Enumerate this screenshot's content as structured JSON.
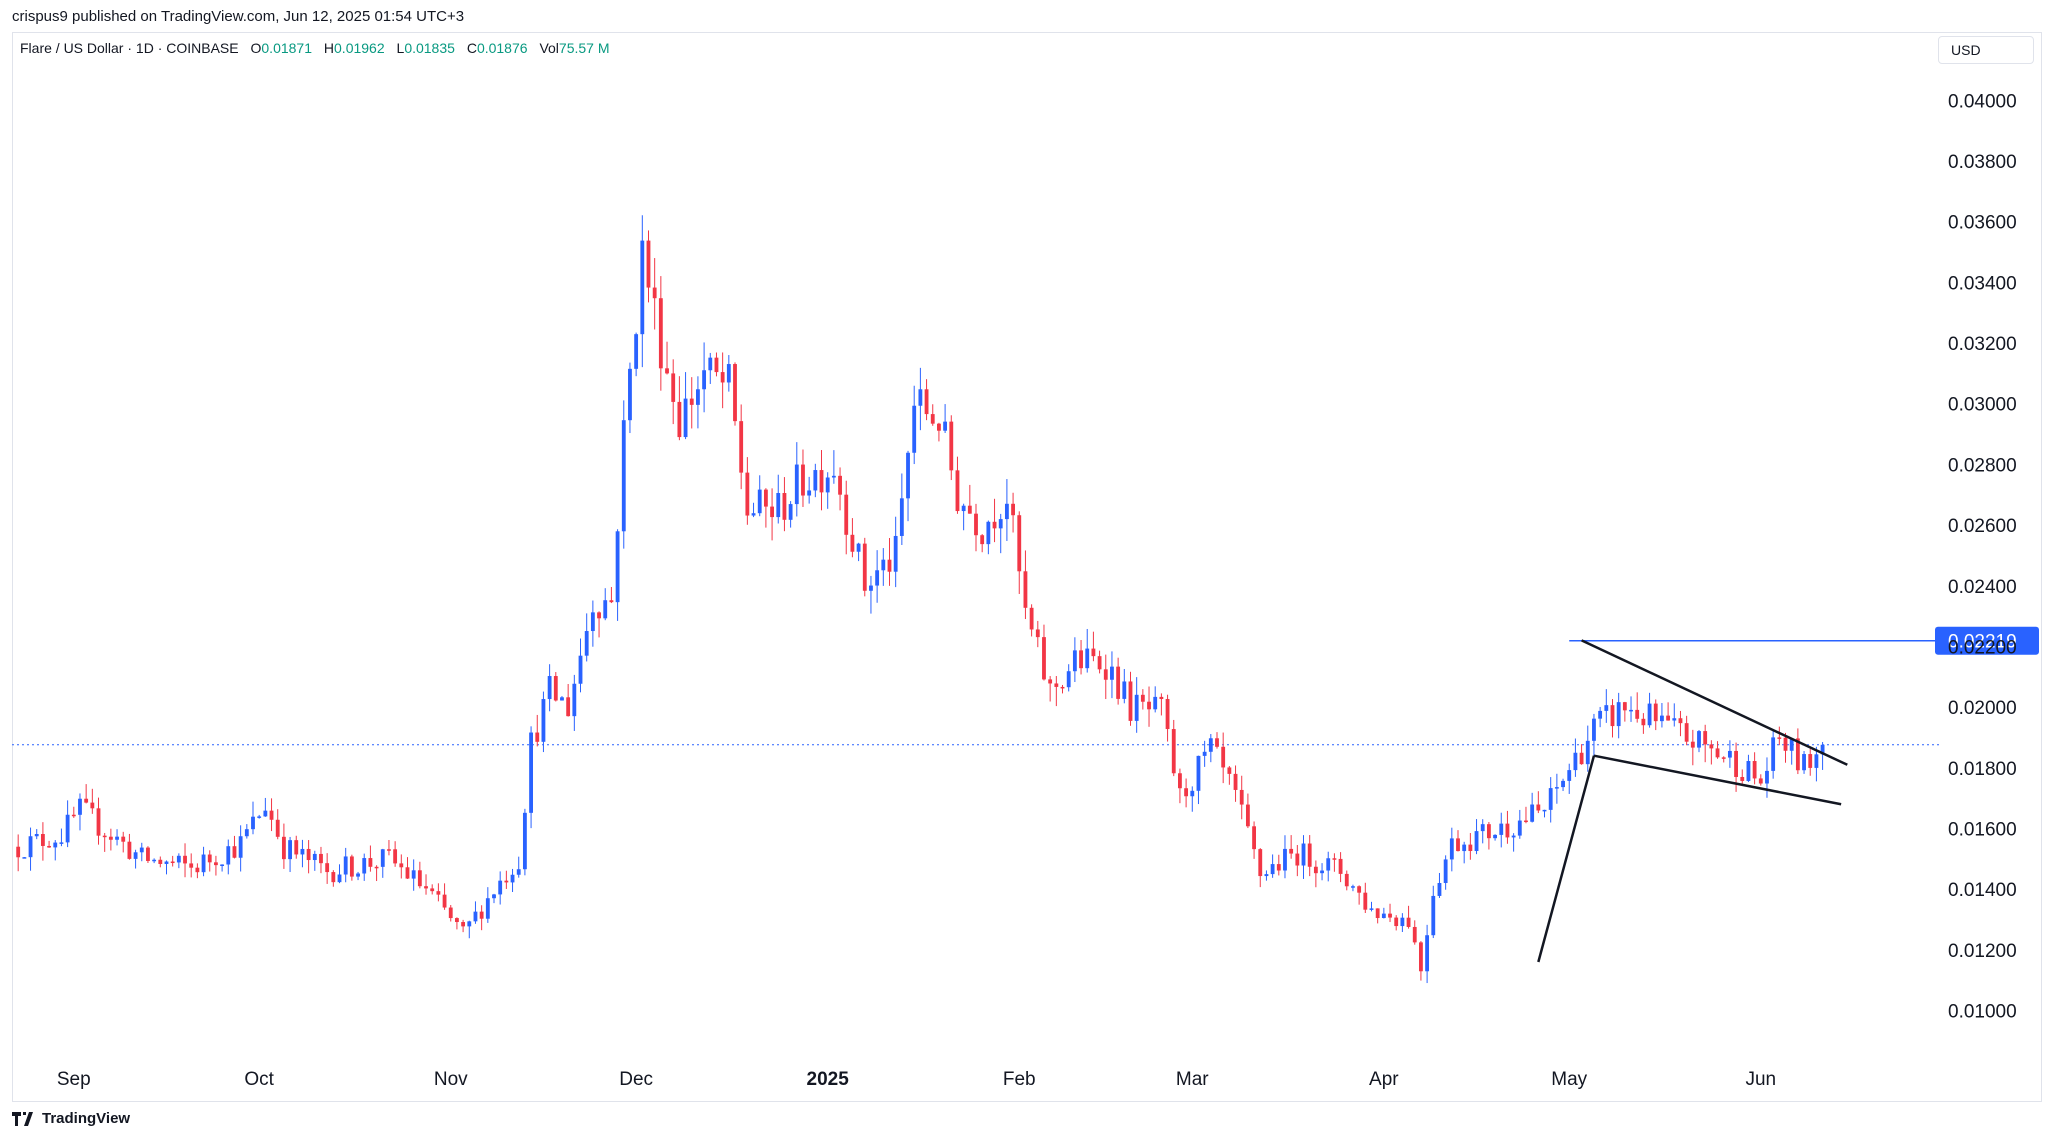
{
  "publisher_line": "crispus9 published on TradingView.com, Jun 12, 2025 01:54 UTC+3",
  "legend": {
    "symbol": "Flare / US Dollar · 1D · COINBASE",
    "o_label": "O",
    "o": "0.01871",
    "h_label": "H",
    "h": "0.01962",
    "l_label": "L",
    "l": "0.01835",
    "c_label": "C",
    "c": "0.01876",
    "vol_label": "Vol",
    "vol": "75.57 M"
  },
  "currency_button": "USD",
  "brand": "TradingView",
  "colors": {
    "up": "#2962ff",
    "down": "#f23645",
    "grid_line": "#2962ff",
    "text": "#131722"
  },
  "chart_data": {
    "type": "candlestick",
    "x_ticks": [
      {
        "label": "Sep",
        "date": "2024-09-01"
      },
      {
        "label": "Oct",
        "date": "2024-10-01"
      },
      {
        "label": "Nov",
        "date": "2024-11-01"
      },
      {
        "label": "Dec",
        "date": "2024-12-01"
      },
      {
        "label": "2025",
        "date": "2025-01-01",
        "bold": true
      },
      {
        "label": "Feb",
        "date": "2025-02-01"
      },
      {
        "label": "Mar",
        "date": "2025-03-01"
      },
      {
        "label": "Apr",
        "date": "2025-04-01"
      },
      {
        "label": "May",
        "date": "2025-05-01"
      },
      {
        "label": "Jun",
        "date": "2025-06-01"
      }
    ],
    "x_range": [
      "2024-08-22",
      "2025-06-30"
    ],
    "y_ticks": [
      "0.04000",
      "0.03800",
      "0.03600",
      "0.03400",
      "0.03200",
      "0.03000",
      "0.02800",
      "0.02600",
      "0.02400",
      "0.02200",
      "0.02000",
      "0.01800",
      "0.01600",
      "0.01400",
      "0.01200",
      "0.01000"
    ],
    "ylim": [
      0.0087,
      0.041
    ],
    "last_price": 0.01876,
    "level_line": {
      "value": 0.02219,
      "label": "0.02219",
      "start": "2025-05-01"
    },
    "trendlines": [
      {
        "start": [
          "2025-04-26",
          0.0116
        ],
        "end": [
          "2025-05-05",
          0.0184
        ]
      },
      {
        "start": [
          "2025-05-05",
          0.0184
        ],
        "end": [
          "2025-06-14",
          0.0168
        ]
      },
      {
        "start": [
          "2025-05-03",
          0.0222
        ],
        "end": [
          "2025-06-15",
          0.0181
        ]
      }
    ],
    "anchors": [
      [
        "2024-08-23",
        0.0154
      ],
      [
        "2024-08-30",
        0.0158
      ],
      [
        "2024-09-02",
        0.0166
      ],
      [
        "2024-09-07",
        0.0158
      ],
      [
        "2024-09-12",
        0.015
      ],
      [
        "2024-09-20",
        0.0147
      ],
      [
        "2024-09-28",
        0.0155
      ],
      [
        "2024-10-02",
        0.0168
      ],
      [
        "2024-10-05",
        0.0154
      ],
      [
        "2024-10-12",
        0.0146
      ],
      [
        "2024-10-22",
        0.015
      ],
      [
        "2024-10-28",
        0.014
      ],
      [
        "2024-11-03",
        0.0125
      ],
      [
        "2024-11-08",
        0.014
      ],
      [
        "2024-11-12",
        0.015
      ],
      [
        "2024-11-14",
        0.0188
      ],
      [
        "2024-11-17",
        0.0205
      ],
      [
        "2024-11-20",
        0.02
      ],
      [
        "2024-11-24",
        0.0235
      ],
      [
        "2024-11-27",
        0.0235
      ],
      [
        "2024-11-29",
        0.029
      ],
      [
        "2024-12-02",
        0.035
      ],
      [
        "2024-12-05",
        0.032
      ],
      [
        "2024-12-08",
        0.0295
      ],
      [
        "2024-12-12",
        0.031
      ],
      [
        "2024-12-16",
        0.0305
      ],
      [
        "2024-12-19",
        0.0265
      ],
      [
        "2024-12-24",
        0.0265
      ],
      [
        "2024-12-28",
        0.0275
      ],
      [
        "2025-01-02",
        0.028
      ],
      [
        "2025-01-07",
        0.024
      ],
      [
        "2025-01-12",
        0.025
      ],
      [
        "2025-01-15",
        0.03
      ],
      [
        "2025-01-19",
        0.0295
      ],
      [
        "2025-01-22",
        0.027
      ],
      [
        "2025-01-26",
        0.026
      ],
      [
        "2025-01-30",
        0.027
      ],
      [
        "2025-02-02",
        0.023
      ],
      [
        "2025-02-06",
        0.0205
      ],
      [
        "2025-02-10",
        0.0215
      ],
      [
        "2025-02-15",
        0.0215
      ],
      [
        "2025-02-19",
        0.02
      ],
      [
        "2025-02-24",
        0.0198
      ],
      [
        "2025-02-27",
        0.017
      ],
      [
        "2025-03-04",
        0.0186
      ],
      [
        "2025-03-08",
        0.017
      ],
      [
        "2025-03-12",
        0.0145
      ],
      [
        "2025-03-18",
        0.0152
      ],
      [
        "2025-03-25",
        0.0146
      ],
      [
        "2025-03-30",
        0.0133
      ],
      [
        "2025-04-05",
        0.013
      ],
      [
        "2025-04-07",
        0.0114
      ],
      [
        "2025-04-09",
        0.014
      ],
      [
        "2025-04-12",
        0.0155
      ],
      [
        "2025-04-20",
        0.016
      ],
      [
        "2025-04-27",
        0.0166
      ],
      [
        "2025-05-02",
        0.0183
      ],
      [
        "2025-05-05",
        0.0193
      ],
      [
        "2025-05-10",
        0.02
      ],
      [
        "2025-05-15",
        0.0195
      ],
      [
        "2025-05-22",
        0.0188
      ],
      [
        "2025-05-28",
        0.0182
      ],
      [
        "2025-06-01",
        0.0175
      ],
      [
        "2025-06-04",
        0.019
      ],
      [
        "2025-06-08",
        0.018
      ],
      [
        "2025-06-11",
        0.0188
      ]
    ]
  }
}
